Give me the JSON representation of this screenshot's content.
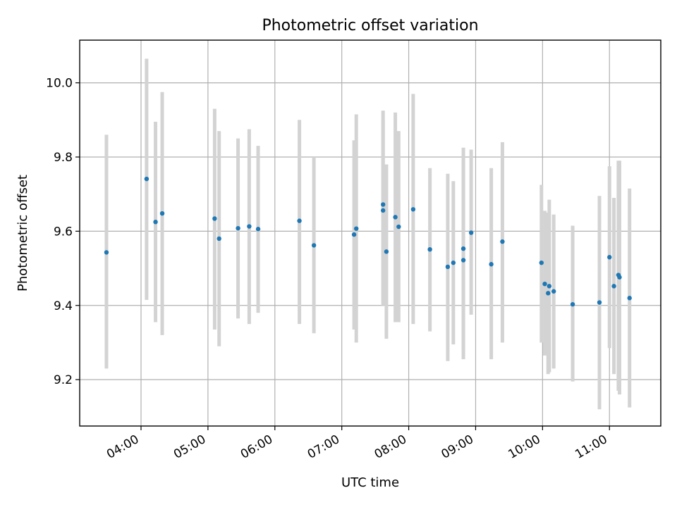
{
  "chart_data": {
    "type": "scatter",
    "title": "Photometric offset variation",
    "xlabel": "UTC time",
    "ylabel": "Photometric offset",
    "xlim": [
      "03:05",
      "11:46"
    ],
    "ylim": [
      9.075,
      10.115
    ],
    "x_ticks": [
      "04:00",
      "05:00",
      "06:00",
      "07:00",
      "08:00",
      "09:00",
      "10:00",
      "11:00"
    ],
    "y_ticks": [
      9.2,
      9.4,
      9.6,
      9.8,
      10.0
    ],
    "y_tick_labels": [
      "9.2",
      "9.4",
      "9.6",
      "9.8",
      "10.0"
    ],
    "grid": true,
    "legend": "none",
    "colors": {
      "marker": "#1f77b4",
      "errorbar": "#d3d3d3"
    },
    "points": [
      {
        "t": "03:29",
        "y": 9.543,
        "lo": 9.23,
        "hi": 9.86
      },
      {
        "t": "04:05",
        "y": 9.741,
        "lo": 9.415,
        "hi": 10.065
      },
      {
        "t": "04:13",
        "y": 9.625,
        "lo": 9.355,
        "hi": 9.895
      },
      {
        "t": "04:19",
        "y": 9.648,
        "lo": 9.32,
        "hi": 9.975
      },
      {
        "t": "05:06",
        "y": 9.634,
        "lo": 9.335,
        "hi": 9.93
      },
      {
        "t": "05:10",
        "y": 9.58,
        "lo": 9.29,
        "hi": 9.87
      },
      {
        "t": "05:27",
        "y": 9.608,
        "lo": 9.365,
        "hi": 9.85
      },
      {
        "t": "05:37",
        "y": 9.613,
        "lo": 9.35,
        "hi": 9.875
      },
      {
        "t": "05:45",
        "y": 9.606,
        "lo": 9.38,
        "hi": 9.83
      },
      {
        "t": "06:22",
        "y": 9.628,
        "lo": 9.35,
        "hi": 9.9
      },
      {
        "t": "06:35",
        "y": 9.562,
        "lo": 9.325,
        "hi": 9.8
      },
      {
        "t": "07:11",
        "y": 9.591,
        "lo": 9.335,
        "hi": 9.845
      },
      {
        "t": "07:13",
        "y": 9.607,
        "lo": 9.3,
        "hi": 9.915
      },
      {
        "t": "07:37",
        "y": 9.672,
        "lo": 9.4,
        "hi": 9.925
      },
      {
        "t": "07:37",
        "y": 9.656,
        "lo": 9.41,
        "hi": 9.9
      },
      {
        "t": "07:40",
        "y": 9.545,
        "lo": 9.31,
        "hi": 9.78
      },
      {
        "t": "07:48",
        "y": 9.638,
        "lo": 9.355,
        "hi": 9.92
      },
      {
        "t": "07:51",
        "y": 9.612,
        "lo": 9.355,
        "hi": 9.87
      },
      {
        "t": "08:04",
        "y": 9.659,
        "lo": 9.35,
        "hi": 9.97
      },
      {
        "t": "08:19",
        "y": 9.551,
        "lo": 9.33,
        "hi": 9.77
      },
      {
        "t": "08:35",
        "y": 9.504,
        "lo": 9.25,
        "hi": 9.755
      },
      {
        "t": "08:40",
        "y": 9.515,
        "lo": 9.295,
        "hi": 9.735
      },
      {
        "t": "08:49",
        "y": 9.522,
        "lo": 9.255,
        "hi": 9.79
      },
      {
        "t": "08:49",
        "y": 9.553,
        "lo": 9.28,
        "hi": 9.825
      },
      {
        "t": "08:56",
        "y": 9.596,
        "lo": 9.375,
        "hi": 9.82
      },
      {
        "t": "09:14",
        "y": 9.511,
        "lo": 9.255,
        "hi": 9.77
      },
      {
        "t": "09:24",
        "y": 9.572,
        "lo": 9.3,
        "hi": 9.84
      },
      {
        "t": "09:59",
        "y": 9.515,
        "lo": 9.3,
        "hi": 9.725
      },
      {
        "t": "10:02",
        "y": 9.458,
        "lo": 9.265,
        "hi": 9.655
      },
      {
        "t": "10:05",
        "y": 9.433,
        "lo": 9.215,
        "hi": 9.65
      },
      {
        "t": "10:06",
        "y": 9.452,
        "lo": 9.22,
        "hi": 9.685
      },
      {
        "t": "10:10",
        "y": 9.438,
        "lo": 9.23,
        "hi": 9.645
      },
      {
        "t": "10:27",
        "y": 9.403,
        "lo": 9.195,
        "hi": 9.615
      },
      {
        "t": "10:51",
        "y": 9.408,
        "lo": 9.12,
        "hi": 9.695
      },
      {
        "t": "11:00",
        "y": 9.53,
        "lo": 9.285,
        "hi": 9.775
      },
      {
        "t": "11:04",
        "y": 9.452,
        "lo": 9.215,
        "hi": 9.69
      },
      {
        "t": "11:08",
        "y": 9.482,
        "lo": 9.17,
        "hi": 9.79
      },
      {
        "t": "11:09",
        "y": 9.476,
        "lo": 9.16,
        "hi": 9.79
      },
      {
        "t": "11:18",
        "y": 9.42,
        "lo": 9.125,
        "hi": 9.715
      }
    ]
  }
}
